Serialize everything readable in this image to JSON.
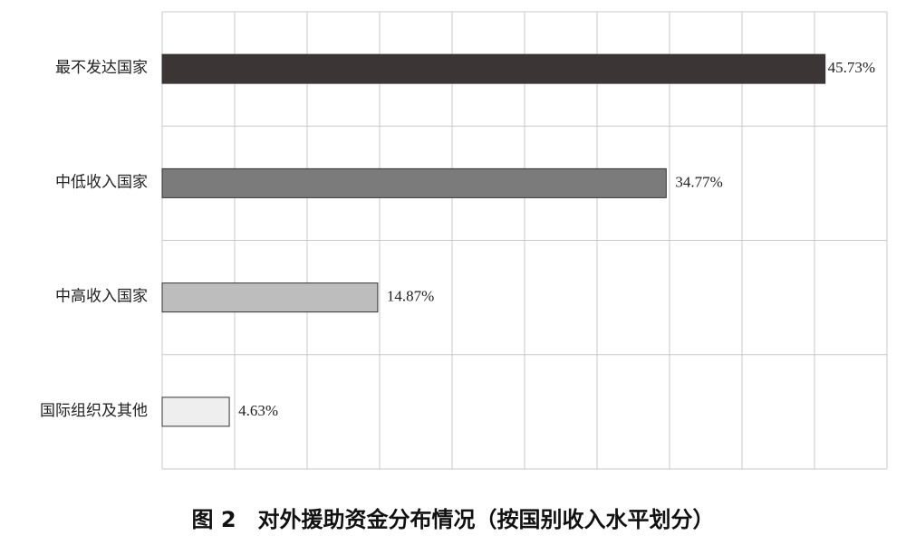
{
  "chart_data": {
    "type": "hbar",
    "title": "图 2　对外援助资金分布情况（按国别收入水平划分）",
    "categories": [
      "最不发达国家",
      "中低收入国家",
      "中高收入国家",
      "国际组织及其他"
    ],
    "values": [
      45.73,
      34.77,
      14.87,
      4.63
    ],
    "value_labels": [
      "45.73%",
      "34.77%",
      "14.87%",
      "4.63%"
    ],
    "colors": [
      "#3b3535",
      "#7b7b7b",
      "#bdbdbd",
      "#eeeeee"
    ],
    "xlim": [
      0,
      50
    ],
    "xticks": [
      0,
      5,
      10,
      15,
      20,
      25,
      30,
      35,
      40,
      45,
      50
    ],
    "grid": true
  }
}
